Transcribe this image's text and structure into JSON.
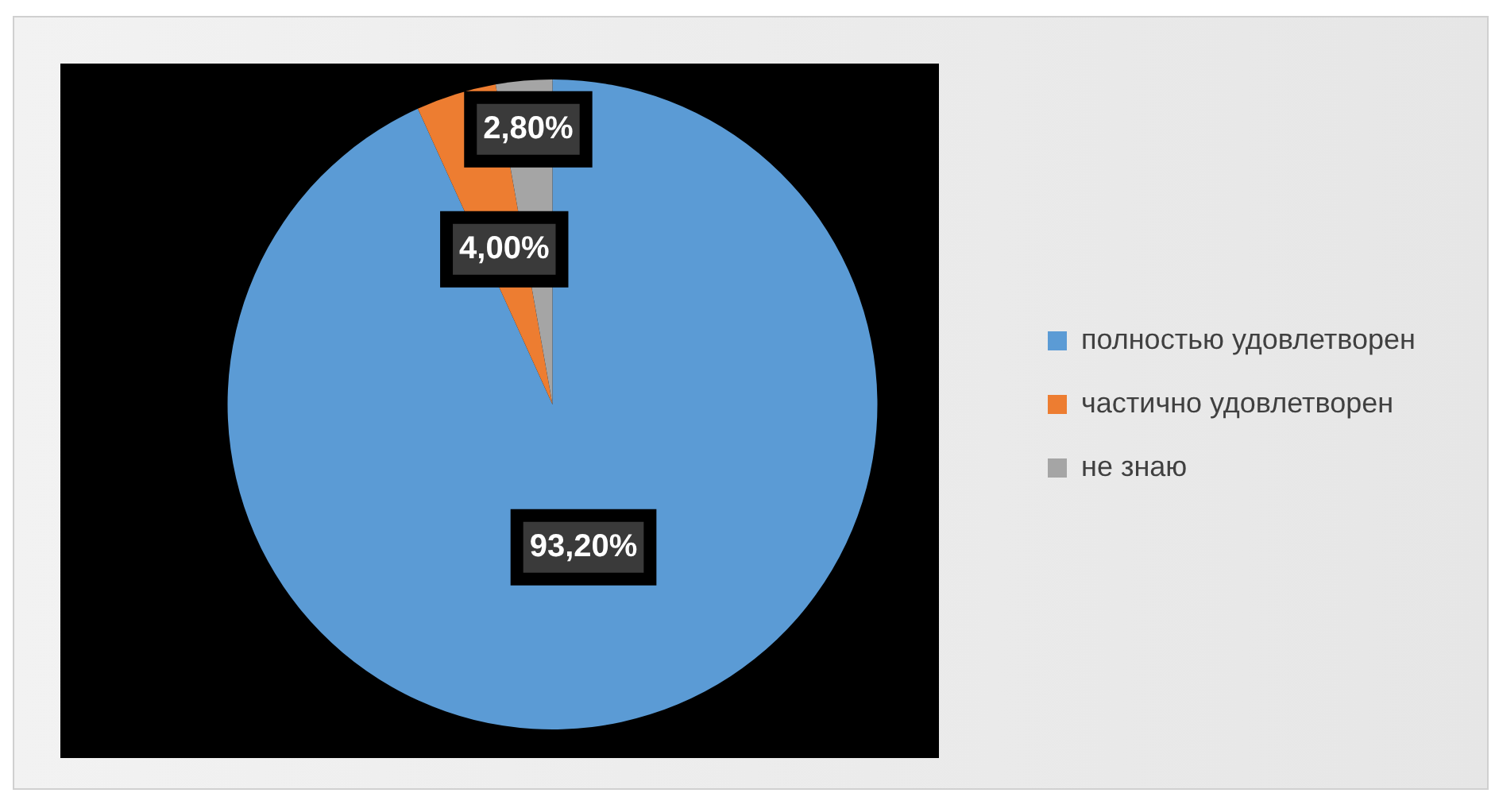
{
  "chart_data": {
    "type": "pie",
    "categories": [
      "полностью удовлетворен",
      "частично удовлетворен",
      "не знаю"
    ],
    "values": [
      93.2,
      4.0,
      2.8
    ],
    "colors": [
      "#5b9bd5",
      "#ed7d31",
      "#a5a5a5"
    ],
    "value_labels": [
      "93,20%",
      "4,00%",
      "2,80%"
    ],
    "legend": "right"
  }
}
